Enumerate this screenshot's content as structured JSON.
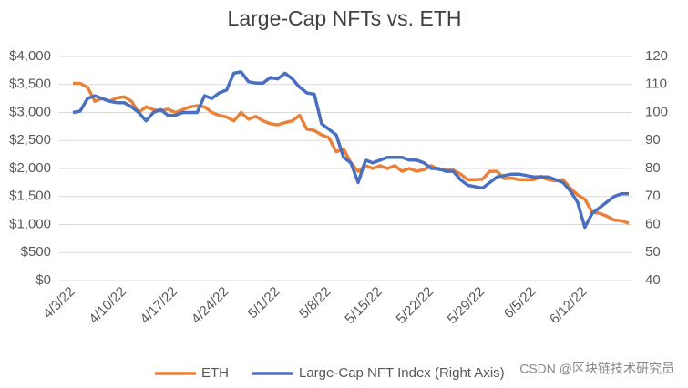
{
  "chart_data": {
    "type": "line",
    "title": "Large-Cap NFTs vs. ETH",
    "categories": [
      "4/3/22",
      null,
      null,
      null,
      null,
      null,
      null,
      "4/10/22",
      null,
      null,
      null,
      null,
      null,
      null,
      "4/17/22",
      null,
      null,
      null,
      null,
      null,
      null,
      "4/24/22",
      null,
      null,
      null,
      null,
      null,
      null,
      "5/1/22",
      null,
      null,
      null,
      null,
      null,
      null,
      "5/8/22",
      null,
      null,
      null,
      null,
      null,
      null,
      "5/15/22",
      null,
      null,
      null,
      null,
      null,
      null,
      "5/22/22",
      null,
      null,
      null,
      null,
      null,
      null,
      "5/29/22",
      null,
      null,
      null,
      null,
      null,
      null,
      "6/5/22",
      null,
      null,
      null,
      null,
      null,
      null,
      "6/12/22",
      null,
      null,
      null,
      null,
      null,
      null
    ],
    "series": [
      {
        "name": "ETH",
        "color": "#e8813a",
        "axis": "y",
        "values": [
          3520,
          3520,
          3450,
          3200,
          3250,
          3200,
          3260,
          3280,
          3200,
          3000,
          3100,
          3050,
          3030,
          3060,
          3000,
          3050,
          3100,
          3120,
          3100,
          3000,
          2950,
          2920,
          2850,
          3000,
          2880,
          2930,
          2850,
          2800,
          2780,
          2820,
          2850,
          2950,
          2700,
          2680,
          2600,
          2550,
          2300,
          2350,
          2100,
          1950,
          2050,
          2000,
          2050,
          2000,
          2050,
          1950,
          2000,
          1950,
          1980,
          2050,
          1980,
          1980,
          1970,
          1900,
          1800,
          1800,
          1810,
          1950,
          1950,
          1820,
          1830,
          1800,
          1800,
          1800,
          1860,
          1800,
          1780,
          1800,
          1650,
          1530,
          1450,
          1220,
          1200,
          1150,
          1080,
          1070,
          1020
        ]
      },
      {
        "name": "Large-Cap NFT Index (Right Axis)",
        "color": "#4a6fc0",
        "axis": "y2",
        "values": [
          100,
          100.5,
          105,
          106,
          105,
          104,
          103.5,
          103.5,
          102,
          100,
          97,
          100,
          101,
          99,
          99,
          100,
          100,
          100,
          106,
          105,
          107,
          108,
          114,
          114.5,
          111,
          110.5,
          110.5,
          112.5,
          112,
          114,
          112,
          109,
          107,
          106.5,
          96,
          94,
          92,
          84,
          82,
          75,
          83,
          82,
          83,
          84,
          84,
          84,
          83,
          83,
          82,
          80,
          80,
          79,
          79,
          76,
          74,
          73.5,
          73,
          75,
          77,
          77.5,
          78,
          78,
          77.5,
          77,
          77,
          77,
          76,
          75,
          72,
          68,
          59,
          64,
          66,
          68,
          70,
          71,
          71
        ]
      }
    ],
    "ylim": [
      0,
      4000
    ],
    "yticks": [
      {
        "value": 0,
        "label": "$0"
      },
      {
        "value": 500,
        "label": "$500"
      },
      {
        "value": 1000,
        "label": "$1,000"
      },
      {
        "value": 1500,
        "label": "$1,500"
      },
      {
        "value": 2000,
        "label": "$2,000"
      },
      {
        "value": 2500,
        "label": "$2,500"
      },
      {
        "value": 3000,
        "label": "$3,000"
      },
      {
        "value": 3500,
        "label": "$3,500"
      },
      {
        "value": 4000,
        "label": "$4,000"
      }
    ],
    "y2lim": [
      40,
      120
    ],
    "y2ticks": [
      40,
      50,
      60,
      70,
      80,
      90,
      100,
      110,
      120
    ],
    "grid": true,
    "legend": "bottom",
    "watermark": "CSDN @区块链技术研究员"
  }
}
